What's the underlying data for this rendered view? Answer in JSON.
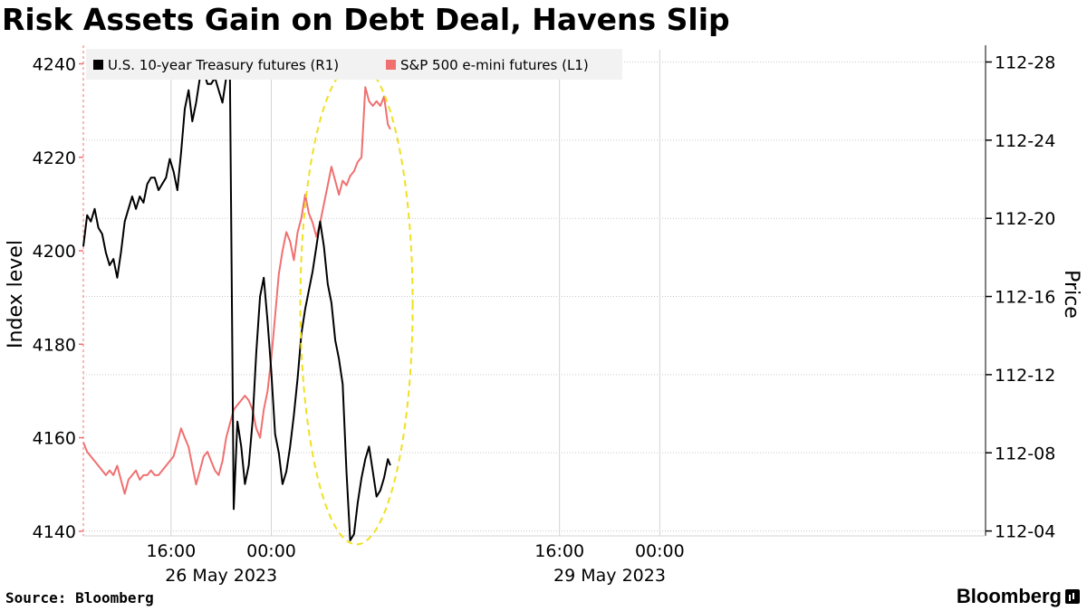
{
  "title": "Risk Assets Gain on Debt Deal, Havens Slip",
  "source": "Source: Bloomberg",
  "brand": "Bloomberg",
  "chart_data": {
    "type": "line",
    "left_axis": {
      "label": "Index level",
      "ticks": [
        4140,
        4160,
        4180,
        4200,
        4220,
        4240
      ],
      "range": [
        4139,
        4243
      ]
    },
    "right_axis": {
      "label": "Price",
      "ticks": [
        "112-04",
        "112-08",
        "112-12",
        "112-16",
        "112-20",
        "112-24",
        "112-28"
      ],
      "range": [
        112.1171875,
        112.89453125
      ]
    },
    "x_axis": {
      "range_hours": [
        0,
        72
      ],
      "time_ticks": [
        {
          "label": "16:00",
          "pos": 7
        },
        {
          "label": "00:00",
          "pos": 15
        },
        {
          "label": "16:00",
          "pos": 38
        },
        {
          "label": "00:00",
          "pos": 46
        }
      ],
      "date_labels": [
        {
          "label": "26 May 2023",
          "pos": 11
        },
        {
          "label": "29 May 2023",
          "pos": 42
        }
      ]
    },
    "legend": {
      "placement": "top-left",
      "items": [
        {
          "label": "U.S. 10-year Treasury futures (R1)",
          "color": "#000000"
        },
        {
          "label": "S&P 500 e-mini futures (L1)",
          "color": "#f07070"
        }
      ]
    },
    "highlight": {
      "shape": "dashed-ellipse",
      "color": "#f0e020"
    },
    "series": [
      {
        "name": "U.S. 10-year Treasury futures (R1)",
        "axis": "right",
        "color": "#000000",
        "points": [
          [
            0.0,
            112.58
          ],
          [
            0.3,
            112.63
          ],
          [
            0.6,
            112.62
          ],
          [
            0.9,
            112.64
          ],
          [
            1.2,
            112.61
          ],
          [
            1.5,
            112.6
          ],
          [
            1.8,
            112.57
          ],
          [
            2.1,
            112.55
          ],
          [
            2.4,
            112.56
          ],
          [
            2.7,
            112.53
          ],
          [
            3.0,
            112.57
          ],
          [
            3.3,
            112.62
          ],
          [
            3.6,
            112.64
          ],
          [
            3.9,
            112.66
          ],
          [
            4.2,
            112.64
          ],
          [
            4.5,
            112.66
          ],
          [
            4.8,
            112.65
          ],
          [
            5.1,
            112.68
          ],
          [
            5.4,
            112.69
          ],
          [
            5.7,
            112.69
          ],
          [
            6.0,
            112.67
          ],
          [
            6.3,
            112.68
          ],
          [
            6.6,
            112.69
          ],
          [
            6.9,
            112.72
          ],
          [
            7.2,
            112.7
          ],
          [
            7.5,
            112.67
          ],
          [
            7.8,
            112.73
          ],
          [
            8.1,
            112.8
          ],
          [
            8.4,
            112.83
          ],
          [
            8.7,
            112.78
          ],
          [
            9.0,
            112.81
          ],
          [
            9.3,
            112.85
          ],
          [
            9.6,
            112.86
          ],
          [
            9.9,
            112.84
          ],
          [
            10.2,
            112.84
          ],
          [
            10.5,
            112.85
          ],
          [
            10.8,
            112.83
          ],
          [
            11.1,
            112.81
          ],
          [
            11.4,
            112.85
          ],
          [
            11.7,
            112.86
          ],
          [
            12.0,
            112.16
          ],
          [
            12.3,
            112.3
          ],
          [
            12.6,
            112.26
          ],
          [
            12.9,
            112.2
          ],
          [
            13.2,
            112.23
          ],
          [
            13.5,
            112.3
          ],
          [
            13.8,
            112.41
          ],
          [
            14.1,
            112.5
          ],
          [
            14.4,
            112.53
          ],
          [
            14.7,
            112.46
          ],
          [
            15.0,
            112.38
          ],
          [
            15.3,
            112.28
          ],
          [
            15.6,
            112.25
          ],
          [
            15.9,
            112.2
          ],
          [
            16.2,
            112.22
          ],
          [
            16.5,
            112.26
          ],
          [
            16.8,
            112.31
          ],
          [
            17.1,
            112.37
          ],
          [
            17.4,
            112.44
          ],
          [
            17.7,
            112.48
          ],
          [
            18.0,
            112.51
          ],
          [
            18.3,
            112.54
          ],
          [
            18.6,
            112.58
          ],
          [
            18.9,
            112.62
          ],
          [
            19.2,
            112.58
          ],
          [
            19.5,
            112.52
          ],
          [
            19.8,
            112.49
          ],
          [
            20.1,
            112.43
          ],
          [
            20.4,
            112.4
          ],
          [
            20.7,
            112.36
          ],
          [
            21.0,
            112.22
          ],
          [
            21.3,
            112.11
          ],
          [
            21.6,
            112.12
          ],
          [
            21.9,
            112.17
          ],
          [
            22.2,
            112.21
          ],
          [
            22.5,
            112.24
          ],
          [
            22.8,
            112.26
          ],
          [
            23.1,
            112.22
          ],
          [
            23.4,
            112.18
          ],
          [
            23.7,
            112.19
          ],
          [
            24.0,
            112.21
          ],
          [
            24.3,
            112.24
          ],
          [
            24.5,
            112.23
          ]
        ]
      },
      {
        "name": "S&P 500 e-mini futures (L1)",
        "axis": "left",
        "color": "#f07070",
        "points": [
          [
            0.0,
            4159
          ],
          [
            0.3,
            4157
          ],
          [
            0.6,
            4156
          ],
          [
            0.9,
            4155
          ],
          [
            1.2,
            4154
          ],
          [
            1.5,
            4153
          ],
          [
            1.8,
            4152
          ],
          [
            2.1,
            4153
          ],
          [
            2.4,
            4152
          ],
          [
            2.7,
            4154
          ],
          [
            3.0,
            4151
          ],
          [
            3.3,
            4148
          ],
          [
            3.6,
            4151
          ],
          [
            3.9,
            4152
          ],
          [
            4.2,
            4153
          ],
          [
            4.5,
            4151
          ],
          [
            4.8,
            4152
          ],
          [
            5.1,
            4152
          ],
          [
            5.4,
            4153
          ],
          [
            5.7,
            4152
          ],
          [
            6.0,
            4152
          ],
          [
            6.3,
            4153
          ],
          [
            6.6,
            4154
          ],
          [
            6.9,
            4155
          ],
          [
            7.2,
            4156
          ],
          [
            7.5,
            4159
          ],
          [
            7.8,
            4162
          ],
          [
            8.1,
            4160
          ],
          [
            8.4,
            4158
          ],
          [
            8.7,
            4154
          ],
          [
            9.0,
            4150
          ],
          [
            9.3,
            4153
          ],
          [
            9.6,
            4156
          ],
          [
            9.9,
            4157
          ],
          [
            10.2,
            4155
          ],
          [
            10.5,
            4153
          ],
          [
            10.8,
            4152
          ],
          [
            11.1,
            4155
          ],
          [
            11.4,
            4160
          ],
          [
            11.7,
            4163
          ],
          [
            12.0,
            4166
          ],
          [
            12.3,
            4167
          ],
          [
            12.6,
            4168
          ],
          [
            12.9,
            4169
          ],
          [
            13.2,
            4168
          ],
          [
            13.5,
            4166
          ],
          [
            13.8,
            4162
          ],
          [
            14.1,
            4160
          ],
          [
            14.4,
            4166
          ],
          [
            14.7,
            4170
          ],
          [
            15.0,
            4177
          ],
          [
            15.3,
            4186
          ],
          [
            15.6,
            4195
          ],
          [
            15.9,
            4200
          ],
          [
            16.2,
            4204
          ],
          [
            16.5,
            4202
          ],
          [
            16.8,
            4198
          ],
          [
            17.1,
            4204
          ],
          [
            17.4,
            4207
          ],
          [
            17.7,
            4212
          ],
          [
            18.0,
            4208
          ],
          [
            18.3,
            4206
          ],
          [
            18.6,
            4203
          ],
          [
            18.9,
            4206
          ],
          [
            19.2,
            4210
          ],
          [
            19.5,
            4214
          ],
          [
            19.8,
            4218
          ],
          [
            20.1,
            4215
          ],
          [
            20.4,
            4212
          ],
          [
            20.7,
            4215
          ],
          [
            21.0,
            4214
          ],
          [
            21.3,
            4216
          ],
          [
            21.6,
            4217
          ],
          [
            21.9,
            4219
          ],
          [
            22.2,
            4220
          ],
          [
            22.5,
            4235
          ],
          [
            22.8,
            4232
          ],
          [
            23.1,
            4231
          ],
          [
            23.4,
            4232
          ],
          [
            23.7,
            4231
          ],
          [
            24.0,
            4233
          ],
          [
            24.3,
            4227
          ],
          [
            24.5,
            4226
          ]
        ]
      }
    ]
  }
}
